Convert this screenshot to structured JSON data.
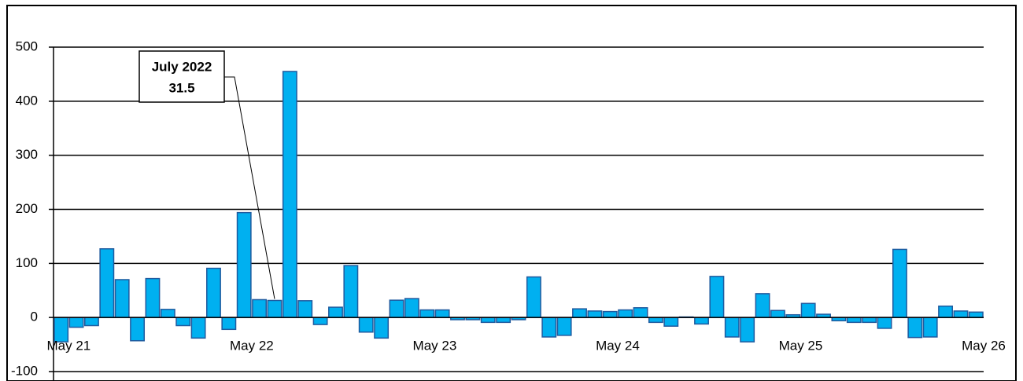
{
  "chart_data": {
    "type": "bar",
    "categories": [
      "May 21",
      null,
      null,
      null,
      null,
      null,
      null,
      null,
      null,
      null,
      null,
      null,
      "May 22",
      null,
      null,
      null,
      null,
      null,
      null,
      null,
      null,
      null,
      null,
      null,
      "May 23",
      null,
      null,
      null,
      null,
      null,
      null,
      null,
      null,
      null,
      null,
      null,
      "May 24",
      null,
      null,
      null,
      null,
      null,
      null,
      null,
      null,
      null,
      null,
      null,
      "May 25",
      null,
      null,
      null,
      null,
      null,
      null,
      null,
      null,
      null,
      null,
      null,
      "May 26"
    ],
    "values": [
      -45,
      -18,
      -15,
      127,
      70,
      -43,
      72,
      15,
      -15,
      -38,
      91,
      -22,
      194,
      33,
      31.5,
      455,
      31,
      -13,
      19,
      96,
      -27,
      -38,
      32,
      35,
      14,
      14,
      -4,
      -4,
      -9,
      -9,
      -4,
      75,
      -36,
      -33,
      16,
      12,
      11,
      14,
      18,
      -9,
      -16,
      1,
      -12,
      76,
      -36,
      -45,
      44,
      13,
      5,
      26,
      6,
      -6,
      -9,
      -9,
      -20,
      126,
      -37,
      -36,
      21,
      12,
      10
    ],
    "color": "#00b0f0",
    "edge_color": "#1f5a9e",
    "ylim": [
      -100,
      500
    ],
    "yticks": [
      -100,
      0,
      100,
      200,
      300,
      400,
      500
    ],
    "grid": true,
    "annotation": {
      "label": "July 2022",
      "value": 31.5,
      "index": 14
    }
  }
}
